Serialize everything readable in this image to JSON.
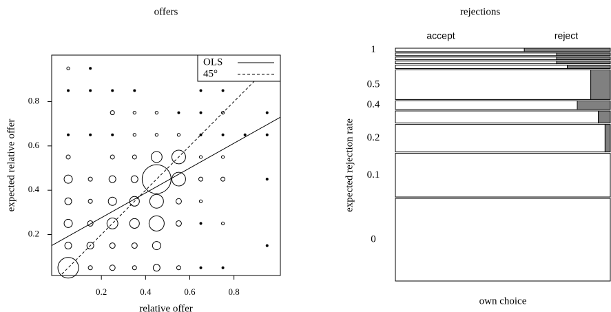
{
  "chart_data": [
    {
      "type": "bubble",
      "title": "offers",
      "xlabel": "relative offer",
      "ylabel": "expected relative offer",
      "xlim": [
        -0.025,
        1.01
      ],
      "ylim": [
        0.015,
        1.01
      ],
      "xticks": [
        0.2,
        0.4,
        0.6,
        0.8
      ],
      "yticks": [
        0.2,
        0.4,
        0.6,
        0.8
      ],
      "x": [
        0.05,
        0.15,
        0.05,
        0.15,
        0.25,
        0.35,
        0.65,
        0.75,
        0.25,
        0.35,
        0.45,
        0.55,
        0.65,
        0.75,
        0.95,
        0.05,
        0.15,
        0.25,
        0.35,
        0.45,
        0.55,
        0.65,
        0.75,
        0.85,
        0.95,
        0.05,
        0.25,
        0.35,
        0.45,
        0.55,
        0.65,
        0.75,
        0.05,
        0.15,
        0.25,
        0.35,
        0.45,
        0.55,
        0.65,
        0.75,
        0.95,
        0.05,
        0.15,
        0.25,
        0.35,
        0.45,
        0.55,
        0.65,
        0.05,
        0.15,
        0.25,
        0.35,
        0.45,
        0.55,
        0.65,
        0.75,
        0.05,
        0.15,
        0.25,
        0.35,
        0.45,
        0.95,
        0.05,
        0.15,
        0.25,
        0.35,
        0.45,
        0.55,
        0.65,
        0.75
      ],
      "y": [
        0.95,
        0.95,
        0.85,
        0.85,
        0.85,
        0.85,
        0.85,
        0.85,
        0.75,
        0.75,
        0.75,
        0.75,
        0.75,
        0.75,
        0.75,
        0.65,
        0.65,
        0.65,
        0.65,
        0.65,
        0.65,
        0.65,
        0.65,
        0.65,
        0.65,
        0.55,
        0.55,
        0.55,
        0.55,
        0.55,
        0.55,
        0.55,
        0.45,
        0.45,
        0.45,
        0.45,
        0.45,
        0.45,
        0.45,
        0.45,
        0.45,
        0.35,
        0.35,
        0.35,
        0.35,
        0.35,
        0.35,
        0.35,
        0.25,
        0.25,
        0.25,
        0.25,
        0.25,
        0.25,
        0.25,
        0.25,
        0.15,
        0.15,
        0.15,
        0.15,
        0.15,
        0.15,
        0.05,
        0.05,
        0.05,
        0.05,
        0.05,
        0.05,
        0.05,
        0.05
      ],
      "sizes": [
        2,
        1,
        1,
        1,
        1,
        1,
        1,
        1,
        4,
        2,
        2,
        1,
        1,
        2,
        1,
        1,
        1,
        1,
        2,
        2,
        2,
        1,
        1,
        1,
        1,
        4,
        4,
        4,
        28,
        44,
        2,
        2,
        16,
        4,
        11,
        11,
        196,
        44,
        4,
        4,
        1,
        11,
        4,
        16,
        22,
        44,
        7,
        2,
        16,
        7,
        28,
        22,
        54,
        7,
        1,
        2,
        11,
        11,
        7,
        7,
        16,
        1,
        100,
        4,
        7,
        4,
        11,
        4,
        1,
        1
      ],
      "ols": {
        "name": "OLS",
        "intercept": 0.164,
        "slope": 0.56
      },
      "diagonal": {
        "name": "45°"
      },
      "legend": "top-right"
    },
    {
      "type": "spine",
      "title": "rejections",
      "xlabel": "own choice",
      "ylabel": "expected rejection rate",
      "categories": [
        "0",
        "0.1",
        "0.2",
        null,
        "0.4",
        "0.5",
        null,
        null,
        null,
        null,
        "1"
      ],
      "series": [
        {
          "name": "accept",
          "color": "#ffffff",
          "values": [
            123,
            65,
            40,
            17,
            11,
            40,
            4,
            3,
            3,
            3,
            3
          ]
        },
        {
          "name": "reject",
          "color": "#808080",
          "values": [
            0,
            0,
            1,
            1,
            2,
            4,
            1,
            1,
            1,
            1,
            2
          ]
        }
      ]
    }
  ]
}
